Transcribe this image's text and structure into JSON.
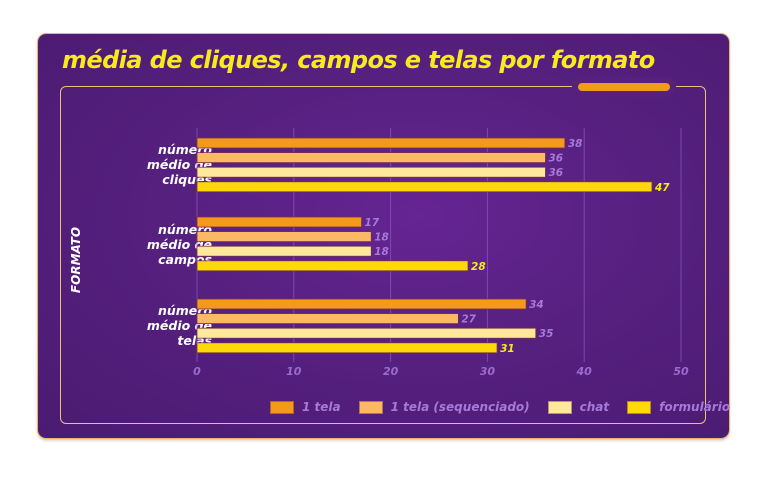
{
  "chart_data": {
    "type": "bar",
    "orientation": "horizontal",
    "title": "média de cliques, campos e telas por formato",
    "ylabel": "FORMATO",
    "xlabel": "",
    "categories": [
      [
        "número",
        "médio de",
        "cliques"
      ],
      [
        "número",
        "médio de",
        "campos"
      ],
      [
        "número",
        "médio de",
        "telas"
      ]
    ],
    "series": [
      {
        "name": "1 tela",
        "color": "#f39a1b",
        "values": [
          38,
          17,
          34
        ]
      },
      {
        "name": "1 tela (sequenciado)",
        "color": "#fbb865",
        "values": [
          36,
          18,
          27
        ]
      },
      {
        "name": "chat",
        "color": "#fde89c",
        "values": [
          36,
          18,
          35
        ]
      },
      {
        "name": "formulário",
        "color": "#fdd90a",
        "values": [
          47,
          28,
          31
        ]
      }
    ],
    "xlim": [
      0,
      50
    ],
    "xticks": [
      "0",
      "10",
      "20",
      "30",
      "40",
      "50"
    ],
    "grid": true,
    "legend_position": "bottom-right",
    "label_colors": {
      "default": "#a77ad8",
      "formulário": "#f9ea1c"
    }
  }
}
